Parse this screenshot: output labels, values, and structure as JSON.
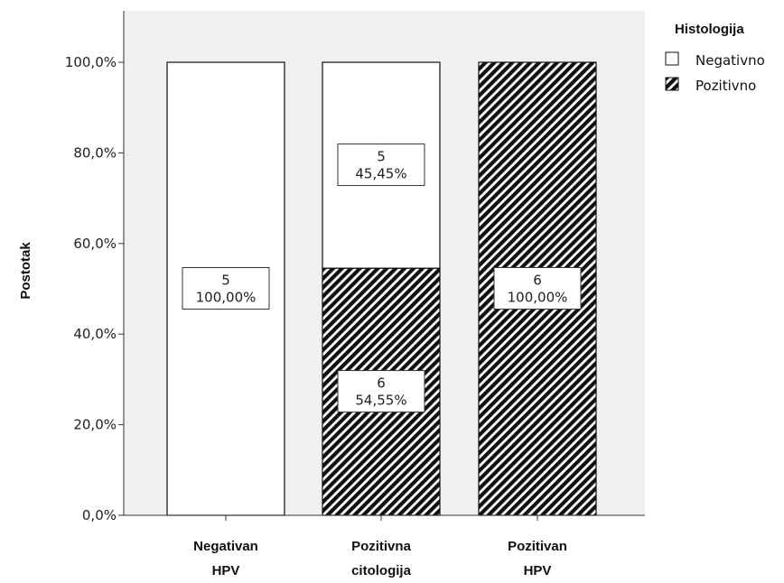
{
  "chart_data": {
    "type": "bar",
    "stacked": true,
    "percent": true,
    "categories": [
      [
        "Negativan",
        "HPV"
      ],
      [
        "Pozitivna",
        "citologija"
      ],
      [
        "Pozitivan",
        "HPV"
      ]
    ],
    "series": [
      {
        "name": "Pozitivno",
        "pattern": "hatch",
        "counts": [
          0,
          6,
          6
        ],
        "values": [
          0,
          54.55,
          100
        ],
        "labels": [
          "",
          "54,55%",
          "100,00%"
        ]
      },
      {
        "name": "Negativno",
        "pattern": "white",
        "counts": [
          5,
          5,
          0
        ],
        "values": [
          100,
          45.45,
          0
        ],
        "labels": [
          "100,00%",
          "45,45%",
          ""
        ]
      }
    ],
    "ylabel": "Postotak",
    "ylim": [
      0,
      100
    ],
    "yticks": [
      "0,0%",
      "20,0%",
      "40,0%",
      "60,0%",
      "80,0%",
      "100,0%"
    ],
    "legend": {
      "title": "Histologija",
      "position": "top-right",
      "items": [
        "Negativno",
        "Pozitivno"
      ]
    },
    "plot_background": "#f0f0f0",
    "bar_outline": "#111111"
  }
}
